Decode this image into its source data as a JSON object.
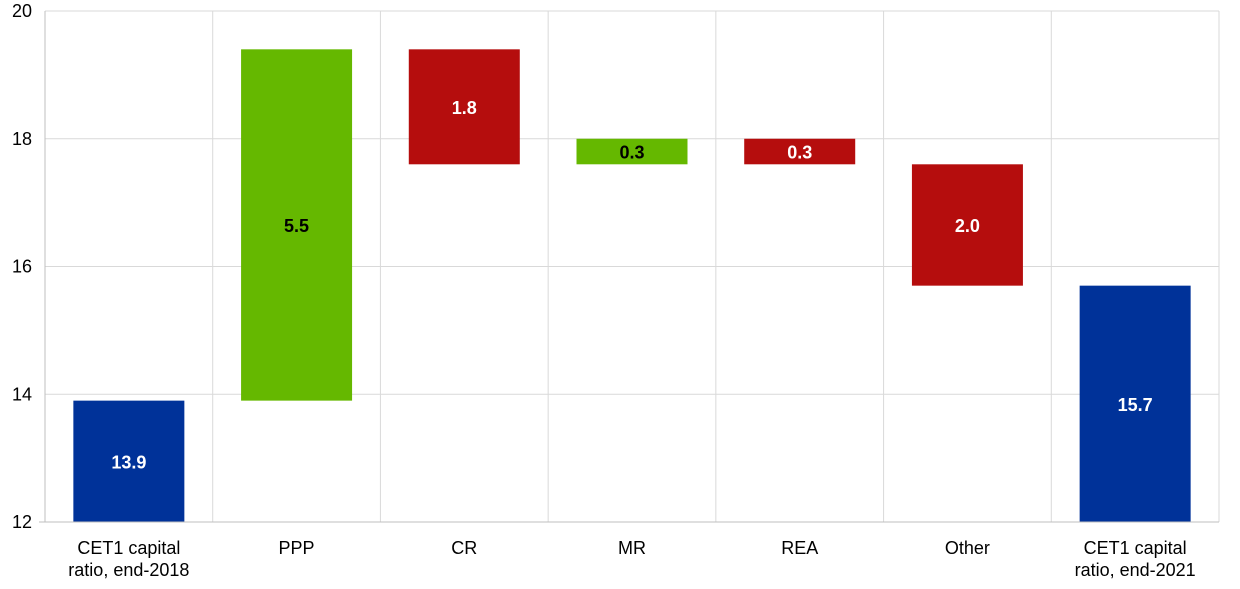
{
  "chart_data": {
    "type": "bar",
    "subtype": "waterfall",
    "title": "",
    "xlabel": "",
    "ylabel": "",
    "ylim": [
      12,
      20
    ],
    "yticks": [
      "12",
      "14",
      "16",
      "18",
      "20"
    ],
    "grid": true,
    "legend": "none",
    "colors": {
      "total": "#003299",
      "increase": "#65B800",
      "decrease": "#B50D0D",
      "grid": "#D9D9D9",
      "axis": "#BFBFBF"
    },
    "categories": [
      [
        "CET1 capital",
        "ratio, end-2018"
      ],
      [
        "PPP"
      ],
      [
        "CR"
      ],
      [
        "MR"
      ],
      [
        "REA"
      ],
      [
        "Other"
      ],
      [
        "CET1 capital",
        "ratio, end-2021"
      ]
    ],
    "bars": [
      {
        "kind": "total",
        "low": 12,
        "high": 13.9,
        "label": "13.9",
        "label_color": "#ffffff"
      },
      {
        "kind": "increase",
        "low": 13.9,
        "high": 19.4,
        "label": "5.5",
        "label_color": "#000000"
      },
      {
        "kind": "decrease",
        "low": 17.6,
        "high": 19.4,
        "label": "1.8",
        "label_color": "#ffffff"
      },
      {
        "kind": "increase",
        "low": 17.6,
        "high": 18.0,
        "label": "0.3",
        "label_color": "#000000"
      },
      {
        "kind": "decrease",
        "low": 17.6,
        "high": 18.0,
        "label": "0.3",
        "label_color": "#ffffff"
      },
      {
        "kind": "decrease",
        "low": 15.7,
        "high": 17.6,
        "label": "2.0",
        "label_color": "#ffffff"
      },
      {
        "kind": "total",
        "low": 12,
        "high": 15.7,
        "label": "15.7",
        "label_color": "#ffffff"
      }
    ]
  }
}
